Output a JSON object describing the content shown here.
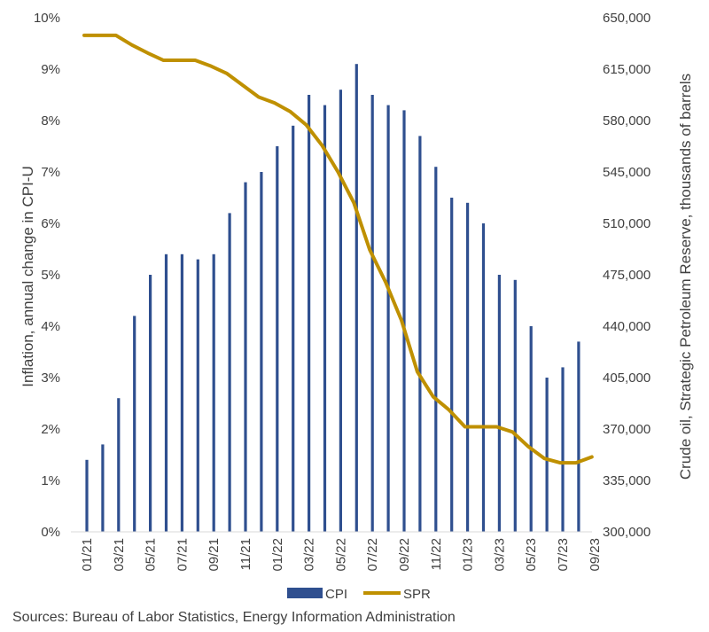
{
  "chart_data": {
    "type": "bar+line",
    "source_note": "Sources: Bureau of Labor Statistics, Energy Information Administration",
    "x_labels": [
      "01/21",
      "03/21",
      "05/21",
      "07/21",
      "09/21",
      "11/21",
      "01/22",
      "03/22",
      "05/22",
      "07/22",
      "09/22",
      "11/22",
      "01/23",
      "03/23",
      "05/23",
      "07/23",
      "09/23"
    ],
    "y_left": {
      "label": "Inflation, annual change in CPI-U",
      "ticks": [
        "0%",
        "1%",
        "2%",
        "3%",
        "4%",
        "5%",
        "6%",
        "7%",
        "8%",
        "9%",
        "10%"
      ],
      "min": 0,
      "max": 10
    },
    "y_right": {
      "label": "Crude oil, Strategic Petroleum Reserve,  thousands of barrels",
      "ticks": [
        "300,000",
        "335,000",
        "370,000",
        "405,000",
        "440,000",
        "475,000",
        "510,000",
        "545,000",
        "580,000",
        "615,000",
        "650,000"
      ],
      "min": 300000,
      "max": 650000
    },
    "legend": [
      "CPI",
      "SPR"
    ],
    "colors": {
      "cpi": "#2f4f8f",
      "spr": "#bf9000"
    },
    "series": [
      {
        "name": "CPI",
        "type": "bar",
        "x": [
          "01/21",
          "02/21",
          "03/21",
          "04/21",
          "05/21",
          "06/21",
          "07/21",
          "08/21",
          "09/21",
          "10/21",
          "11/21",
          "12/21",
          "01/22",
          "02/22",
          "03/22",
          "04/22",
          "05/22",
          "06/22",
          "07/22",
          "08/22",
          "09/22",
          "10/22",
          "11/22",
          "12/22",
          "01/23",
          "02/23",
          "03/23",
          "04/23",
          "05/23",
          "06/23",
          "07/23",
          "08/23"
        ],
        "values": [
          1.4,
          1.7,
          2.6,
          4.2,
          5.0,
          5.4,
          5.4,
          5.3,
          5.4,
          6.2,
          6.8,
          7.0,
          7.5,
          7.9,
          8.5,
          8.3,
          8.6,
          9.1,
          8.5,
          8.3,
          8.2,
          7.7,
          7.1,
          6.5,
          6.4,
          6.0,
          5.0,
          4.9,
          4.0,
          3.0,
          3.2,
          3.7
        ]
      },
      {
        "name": "SPR",
        "type": "line",
        "points": [
          [
            "01/21",
            638000
          ],
          [
            "02/21",
            638000
          ],
          [
            "03/21",
            638000
          ],
          [
            "04/21",
            631500
          ],
          [
            "05/21",
            626000
          ],
          [
            "06/21",
            621000
          ],
          [
            "07/21",
            621000
          ],
          [
            "08/21",
            621000
          ],
          [
            "09/21",
            617000
          ],
          [
            "10/21",
            612000
          ],
          [
            "11/21",
            604000
          ],
          [
            "12/21",
            596000
          ],
          [
            "01/22",
            592000
          ],
          [
            "02/22",
            586000
          ],
          [
            "03/22",
            577000
          ],
          [
            "04/22",
            563000
          ],
          [
            "05/22",
            545000
          ],
          [
            "06/22",
            524000
          ],
          [
            "07/22",
            492000
          ],
          [
            "08/22",
            470000
          ],
          [
            "09/22",
            444000
          ],
          [
            "10/22",
            409000
          ],
          [
            "11/22",
            392000
          ],
          [
            "12/22",
            383000
          ],
          [
            "01/23",
            371500
          ],
          [
            "02/23",
            371500
          ],
          [
            "03/23",
            371500
          ],
          [
            "04/23",
            368000
          ],
          [
            "05/23",
            358000
          ],
          [
            "06/23",
            350000
          ],
          [
            "07/23",
            347000
          ],
          [
            "08/23",
            347000
          ],
          [
            "09/23",
            351000
          ]
        ]
      }
    ],
    "grid": false
  }
}
